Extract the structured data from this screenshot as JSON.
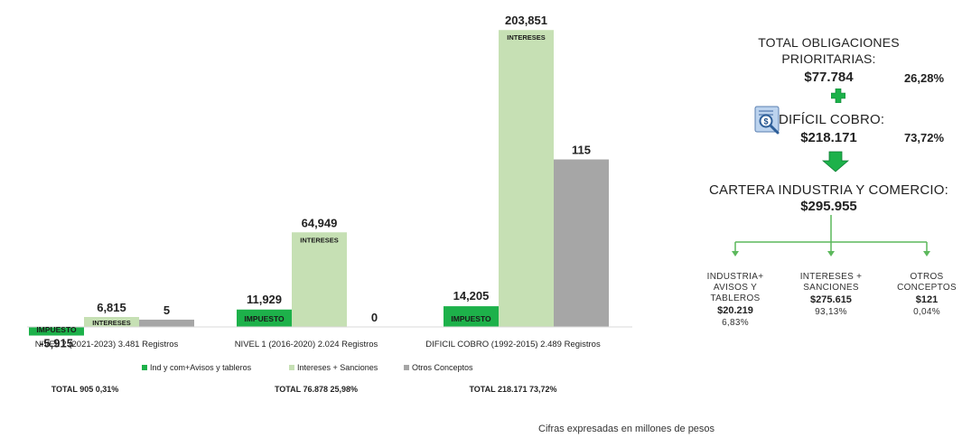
{
  "chart_data": {
    "type": "bar",
    "categories": [
      "NIVEL 2 (2021-2023) 3.481 Registros",
      "NIVEL 1 (2016-2020) 2.024 Registros",
      "DIFICIL COBRO (1992-2015) 2.489 Registros"
    ],
    "series": [
      {
        "name": "Ind y com+Avisos y tableros",
        "color": "#1db14a",
        "values": [
          -5.915,
          11.929,
          14.205
        ],
        "labels": [
          "-5,915",
          "11,929",
          "14,205"
        ],
        "inner_label": "IMPUESTO"
      },
      {
        "name": "Intereses + Sanciones",
        "color": "#c6e0b4",
        "values": [
          6.815,
          64.949,
          203.851
        ],
        "labels": [
          "6,815",
          "64,949",
          "203,851"
        ],
        "inner_label": "INTERESES"
      },
      {
        "name": "Otros Conceptos",
        "color": "#a6a6a6",
        "values": [
          5,
          0,
          115
        ],
        "labels": [
          "5",
          "0",
          "115"
        ],
        "inner_label": ""
      }
    ],
    "ylim": [
      -6,
      204
    ],
    "grid": false,
    "legend_position": "bottom",
    "totals": [
      "TOTAL 905  0,31%",
      "TOTAL 76.878  25,98%",
      "TOTAL 218.171  73,72%"
    ]
  },
  "panel": {
    "total_title_1": "TOTAL OBLIGACIONES",
    "total_title_2": "PRIORITARIAS:",
    "total_value": "$77.784",
    "total_pct": "26,28%",
    "dificil_label": "DIFÍCIL COBRO:",
    "dificil_value": "$218.171",
    "dificil_pct": "73,72%",
    "cartera_label": "CARTERA INDUSTRIA Y COMERCIO:",
    "cartera_value": "$295.955",
    "branches": [
      {
        "line1": "INDUSTRIA+",
        "line2": "AVISOS Y",
        "line3": "TABLEROS",
        "value": "$20.219",
        "pct": "6,83%"
      },
      {
        "line1": "INTERESES +",
        "line2": "SANCIONES",
        "line3": "",
        "value": "$275.615",
        "pct": "93,13%"
      },
      {
        "line1": "OTROS",
        "line2": "CONCEPTOS",
        "line3": "",
        "value": "$121",
        "pct": "0,04%"
      }
    ],
    "colors": {
      "plus": "#1db14a",
      "arrow": "#1db14a",
      "connector": "#5cb85c"
    },
    "icons": [
      "plus-icon",
      "magnifier-document-icon",
      "down-arrow-icon"
    ]
  },
  "footnote": "Cifras expresadas en millones de pesos"
}
